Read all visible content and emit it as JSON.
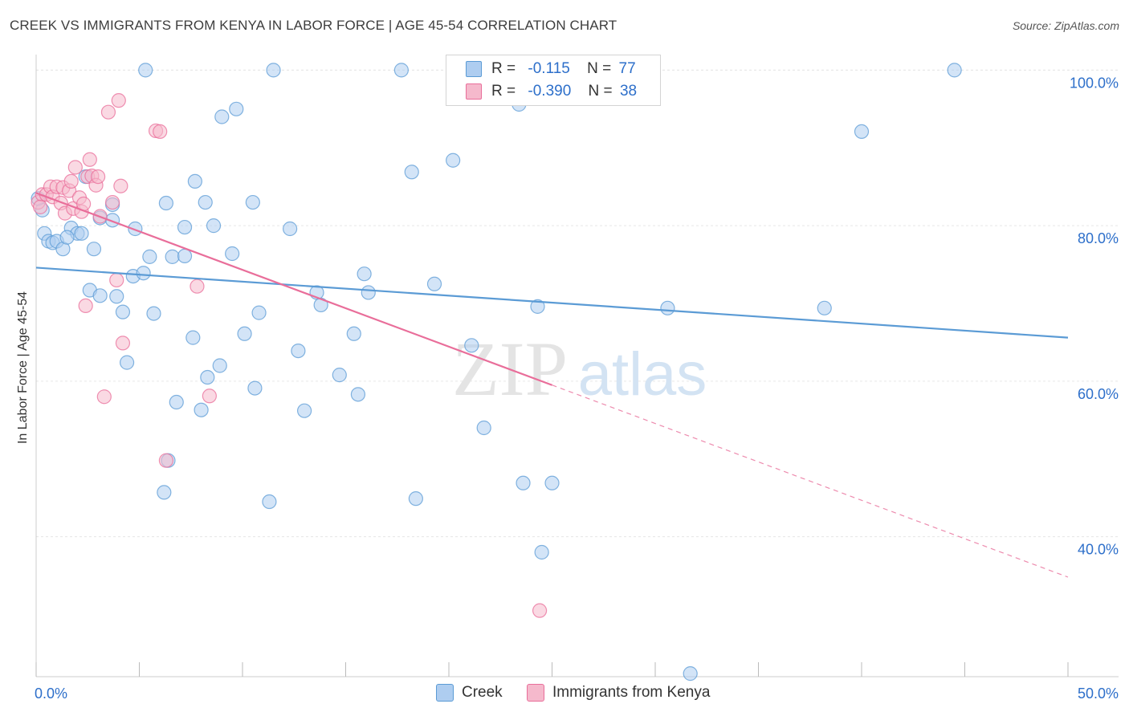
{
  "title": "CREEK VS IMMIGRANTS FROM KENYA IN LABOR FORCE | AGE 45-54 CORRELATION CHART",
  "source": "Source: ZipAtlas.com",
  "watermark": {
    "zip": "ZIP",
    "atlas": "atlas"
  },
  "colors": {
    "creek": "#5b9bd5",
    "creek_fill": "#aecdf0",
    "kenya": "#e96e9a",
    "kenya_fill": "#f5b9cc",
    "value_text": "#2d6fca"
  },
  "legend": {
    "creek": {
      "r_label": "R =",
      "r_value": "-0.115",
      "n_label": "N =",
      "n_value": "77"
    },
    "kenya": {
      "r_label": "R =",
      "r_value": "-0.390",
      "n_label": "N =",
      "n_value": "38"
    }
  },
  "chart_data": {
    "type": "scatter",
    "title": "CREEK VS IMMIGRANTS FROM KENYA IN LABOR FORCE | AGE 45-54 CORRELATION CHART",
    "xlabel": "",
    "ylabel": "In Labor Force | Age 45-54",
    "xlim": [
      0,
      50
    ],
    "ylim": [
      22,
      102
    ],
    "x_tick_labels": [
      "0.0%",
      "50.0%"
    ],
    "y_ticks": [
      40,
      60,
      80,
      100
    ],
    "y_tick_labels": [
      "40.0%",
      "60.0%",
      "80.0%",
      "100.0%"
    ],
    "grid": true,
    "legend_placement": "top-center",
    "series": [
      {
        "name": "Creek",
        "color": "#5b9bd5",
        "trend": {
          "x": [
            0,
            50
          ],
          "y": [
            74.6,
            65.6
          ],
          "dashed_from": null
        },
        "points": [
          [
            0.3,
            82
          ],
          [
            0.4,
            79
          ],
          [
            0.6,
            78
          ],
          [
            0.8,
            77.8
          ],
          [
            1.0,
            78
          ],
          [
            1.3,
            77
          ],
          [
            1.7,
            79.7
          ],
          [
            2.0,
            79
          ],
          [
            2.2,
            79
          ],
          [
            2.4,
            86.3
          ],
          [
            2.8,
            77
          ],
          [
            3.1,
            81
          ],
          [
            3.7,
            80.7
          ],
          [
            3.7,
            82.7
          ],
          [
            2.6,
            71.7
          ],
          [
            3.1,
            71
          ],
          [
            3.9,
            70.9
          ],
          [
            4.2,
            68.9
          ],
          [
            4.4,
            62.4
          ],
          [
            4.7,
            73.5
          ],
          [
            4.8,
            79.6
          ],
          [
            5.2,
            73.9
          ],
          [
            5.3,
            100
          ],
          [
            5.5,
            76
          ],
          [
            5.7,
            68.7
          ],
          [
            6.2,
            45.7
          ],
          [
            6.3,
            82.9
          ],
          [
            6.4,
            49.8
          ],
          [
            6.6,
            76
          ],
          [
            6.8,
            57.3
          ],
          [
            7.2,
            76.1
          ],
          [
            7.2,
            79.8
          ],
          [
            7.6,
            65.6
          ],
          [
            7.7,
            85.7
          ],
          [
            8.0,
            56.3
          ],
          [
            8.2,
            83
          ],
          [
            8.3,
            60.5
          ],
          [
            8.6,
            80
          ],
          [
            8.9,
            62
          ],
          [
            9.0,
            94
          ],
          [
            9.5,
            76.4
          ],
          [
            9.7,
            95
          ],
          [
            10.1,
            66.1
          ],
          [
            10.5,
            83
          ],
          [
            10.6,
            59.1
          ],
          [
            10.8,
            68.8
          ],
          [
            11.3,
            44.5
          ],
          [
            11.5,
            100
          ],
          [
            12.3,
            79.6
          ],
          [
            12.7,
            63.9
          ],
          [
            13.0,
            56.2
          ],
          [
            13.6,
            71.4
          ],
          [
            13.8,
            69.8
          ],
          [
            14.7,
            60.8
          ],
          [
            15.4,
            66.1
          ],
          [
            15.6,
            58.3
          ],
          [
            15.9,
            73.8
          ],
          [
            16.1,
            71.4
          ],
          [
            17.7,
            100
          ],
          [
            18.2,
            86.9
          ],
          [
            18.4,
            44.9
          ],
          [
            19.3,
            72.5
          ],
          [
            20.2,
            88.4
          ],
          [
            21.1,
            64.6
          ],
          [
            21.7,
            54
          ],
          [
            23.4,
            95.6
          ],
          [
            23.6,
            46.9
          ],
          [
            24.3,
            69.6
          ],
          [
            24.5,
            38
          ],
          [
            25.0,
            46.9
          ],
          [
            30.6,
            69.4
          ],
          [
            31.7,
            22.4
          ],
          [
            38.2,
            69.4
          ],
          [
            40.0,
            92.1
          ],
          [
            44.5,
            100
          ],
          [
            0.1,
            83.5
          ],
          [
            1.5,
            78.5
          ]
        ]
      },
      {
        "name": "Immigrants from Kenya",
        "color": "#e96e9a",
        "trend": {
          "x": [
            0,
            25,
            50
          ],
          "y": [
            84.2,
            59.5,
            34.8
          ],
          "dashed_from": 25
        },
        "points": [
          [
            0.1,
            83
          ],
          [
            0.3,
            84
          ],
          [
            0.5,
            84
          ],
          [
            0.7,
            85
          ],
          [
            0.8,
            83.7
          ],
          [
            1.0,
            85
          ],
          [
            1.2,
            82.9
          ],
          [
            1.3,
            84.9
          ],
          [
            1.4,
            81.6
          ],
          [
            1.6,
            84.5
          ],
          [
            1.7,
            85.7
          ],
          [
            1.8,
            82.2
          ],
          [
            1.9,
            87.5
          ],
          [
            2.1,
            83.6
          ],
          [
            2.2,
            81.8
          ],
          [
            2.3,
            82.8
          ],
          [
            2.4,
            69.7
          ],
          [
            2.5,
            86.3
          ],
          [
            2.6,
            88.5
          ],
          [
            2.7,
            86.4
          ],
          [
            2.9,
            85.2
          ],
          [
            3.0,
            86.3
          ],
          [
            3.1,
            81.2
          ],
          [
            3.3,
            58
          ],
          [
            3.5,
            94.6
          ],
          [
            3.7,
            83
          ],
          [
            3.9,
            73
          ],
          [
            4.0,
            96.1
          ],
          [
            4.1,
            85.1
          ],
          [
            4.2,
            64.9
          ],
          [
            5.8,
            92.2
          ],
          [
            6.0,
            92.1
          ],
          [
            6.3,
            49.8
          ],
          [
            7.8,
            72.2
          ],
          [
            8.4,
            58.1
          ],
          [
            23.4,
            100
          ],
          [
            24.4,
            30.5
          ],
          [
            0.2,
            82.4
          ]
        ]
      }
    ]
  }
}
